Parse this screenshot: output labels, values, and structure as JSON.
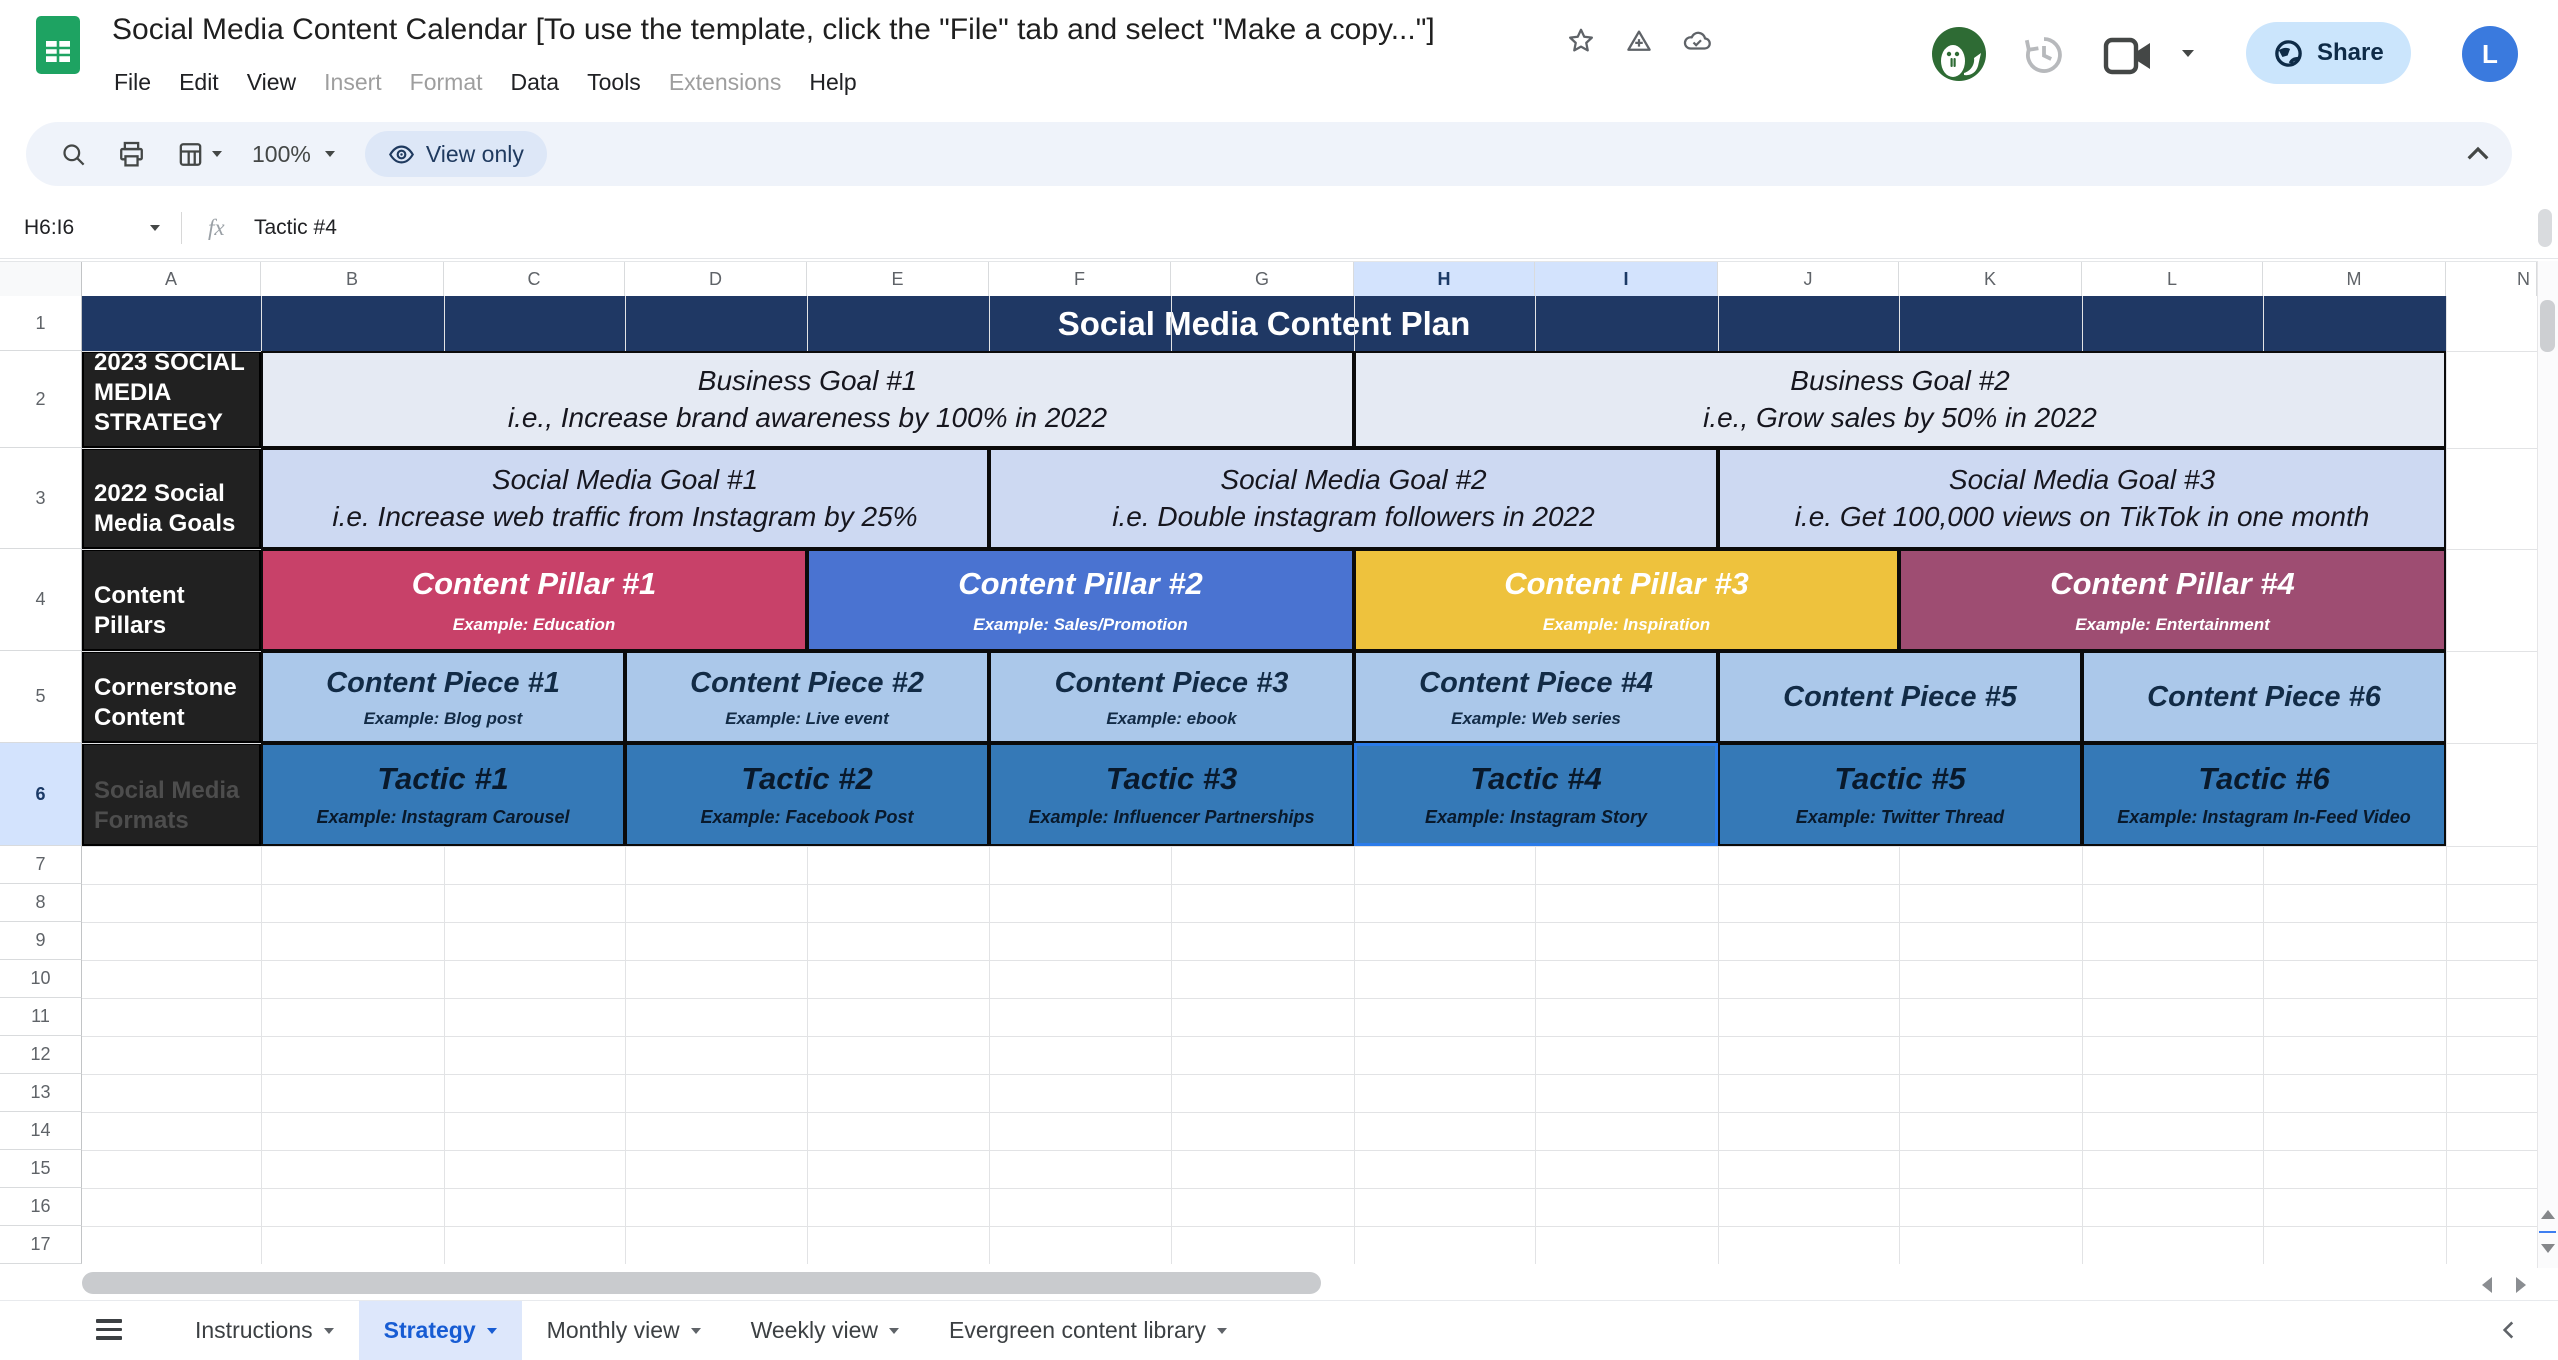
{
  "titlebar": {
    "title": "Social Media Content Calendar [To use the template, click the \"File\" tab and select \"Make a copy...\"]",
    "menus": [
      {
        "label": "File",
        "enabled": true
      },
      {
        "label": "Edit",
        "enabled": true
      },
      {
        "label": "View",
        "enabled": true
      },
      {
        "label": "Insert",
        "enabled": false
      },
      {
        "label": "Format",
        "enabled": false
      },
      {
        "label": "Data",
        "enabled": true
      },
      {
        "label": "Tools",
        "enabled": true
      },
      {
        "label": "Extensions",
        "enabled": false
      },
      {
        "label": "Help",
        "enabled": true
      }
    ]
  },
  "topright": {
    "share": "Share",
    "avatar_letter": "L"
  },
  "toolbar": {
    "zoom": "100%",
    "view_only": "View only"
  },
  "formula_bar": {
    "name_box": "H6:I6",
    "fx": "fx",
    "value": "Tactic #4"
  },
  "grid": {
    "columns": [
      "A",
      "B",
      "C",
      "D",
      "E",
      "F",
      "G",
      "H",
      "I",
      "J",
      "K",
      "L",
      "M",
      "N"
    ],
    "selected_columns": [
      "H",
      "I"
    ],
    "rows": [
      "1",
      "2",
      "3",
      "4",
      "5",
      "6",
      "7",
      "8",
      "9",
      "10",
      "11",
      "12",
      "13",
      "14",
      "15",
      "16",
      "17"
    ],
    "selected_row": "6",
    "banner": "Social Media Content Plan",
    "row_labels": [
      "2023 SOCIAL MEDIA STRATEGY",
      "2022 Social Media Goals",
      "Content Pillars",
      "Cornerstone Content",
      "Social Media Formats"
    ],
    "business_goals": [
      {
        "title": "Business Goal #1",
        "sub": "i.e., Increase brand awareness by 100% in 2022"
      },
      {
        "title": "Business Goal #2",
        "sub": "i.e., Grow sales by 50% in 2022"
      }
    ],
    "social_goals": [
      {
        "title": "Social Media Goal #1",
        "sub": "i.e. Increase web traffic from Instagram by 25%"
      },
      {
        "title": "Social Media Goal #2",
        "sub": "i.e. Double instagram followers in 2022"
      },
      {
        "title": "Social Media Goal #3",
        "sub": "i.e. Get 100,000 views on TikTok in one month"
      }
    ],
    "pillars": [
      {
        "title": "Content Pillar #1",
        "sub": "Example: Education"
      },
      {
        "title": "Content Pillar #2",
        "sub": "Example:  Sales/Promotion"
      },
      {
        "title": "Content Pillar #3",
        "sub": "Example: Inspiration"
      },
      {
        "title": "Content Pillar #4",
        "sub": "Example:  Entertainment"
      }
    ],
    "pieces": [
      {
        "title": "Content Piece #1",
        "sub": "Example: Blog post"
      },
      {
        "title": "Content Piece #2",
        "sub": "Example: Live event"
      },
      {
        "title": "Content Piece #3",
        "sub": "Example: ebook"
      },
      {
        "title": "Content Piece #4",
        "sub": "Example: Web series"
      },
      {
        "title": "Content Piece #5",
        "sub": ""
      },
      {
        "title": "Content Piece #6",
        "sub": ""
      }
    ],
    "tactics": [
      {
        "title": "Tactic #1",
        "sub": "Example: Instagram Carousel"
      },
      {
        "title": "Tactic #2",
        "sub": "Example: Facebook Post"
      },
      {
        "title": "Tactic #3",
        "sub": "Example: Influencer Partnerships"
      },
      {
        "title": "Tactic #4",
        "sub": "Example: Instagram Story"
      },
      {
        "title": "Tactic  #5",
        "sub": "Example: Twitter Thread"
      },
      {
        "title": "Tactic #6",
        "sub": "Example: Instagram In-Feed Video"
      }
    ],
    "selected_cell": "Tactic #4"
  },
  "tabbar": {
    "tabs": [
      {
        "label": "Instructions",
        "active": false
      },
      {
        "label": "Strategy",
        "active": true
      },
      {
        "label": "Monthly view",
        "active": false
      },
      {
        "label": "Weekly view",
        "active": false
      },
      {
        "label": "Evergreen content library",
        "active": false
      }
    ]
  },
  "colors": {
    "banner_bg": "#1f3864",
    "label_col_bg": "#212121",
    "business_row_bg": "#e5eaf3",
    "social_row_bg": "#cdd9f2",
    "pieces_row_bg": "#abc8ea",
    "tactics_row_bg": "#3579b7",
    "pillar1": "#c84169",
    "pillar2": "#4a73d1",
    "pillar3": "#eec23d",
    "pillar4": "#9e4d72",
    "selection": "#2b7cea",
    "active_tab_text": "#175cd3",
    "share_bg": "#cbe5fc",
    "selected_header_bg": "#d3e3fd"
  }
}
